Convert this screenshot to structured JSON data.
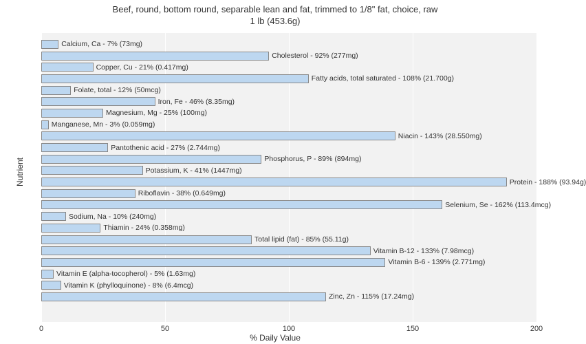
{
  "chart": {
    "type": "bar-horizontal",
    "title_line1": "Beef, round, bottom round, separable lean and fat, trimmed to 1/8\" fat, choice, raw",
    "title_line2": "1 lb (453.6g)",
    "title_fontsize": 13,
    "y_axis_label": "Nutrient",
    "x_axis_label": "% Daily Value",
    "axis_label_fontsize": 12,
    "tick_fontsize": 11,
    "bar_label_fontsize": 10.5,
    "xlim": [
      0,
      200
    ],
    "xtick_step": 50,
    "xticks": [
      0,
      50,
      100,
      150,
      200
    ],
    "background_color": "#ffffff",
    "plot_background_color": "#f2f2f2",
    "grid_color": "#ffffff",
    "bar_fill_color": "#bdd7f0",
    "bar_border_color": "#888888",
    "text_color": "#333333",
    "nutrients": [
      {
        "label": "Calcium, Ca - 7% (73mg)",
        "pct": 7
      },
      {
        "label": "Cholesterol - 92% (277mg)",
        "pct": 92
      },
      {
        "label": "Copper, Cu - 21% (0.417mg)",
        "pct": 21
      },
      {
        "label": "Fatty acids, total saturated - 108% (21.700g)",
        "pct": 108
      },
      {
        "label": "Folate, total - 12% (50mcg)",
        "pct": 12
      },
      {
        "label": "Iron, Fe - 46% (8.35mg)",
        "pct": 46
      },
      {
        "label": "Magnesium, Mg - 25% (100mg)",
        "pct": 25
      },
      {
        "label": "Manganese, Mn - 3% (0.059mg)",
        "pct": 3
      },
      {
        "label": "Niacin - 143% (28.550mg)",
        "pct": 143
      },
      {
        "label": "Pantothenic acid - 27% (2.744mg)",
        "pct": 27
      },
      {
        "label": "Phosphorus, P - 89% (894mg)",
        "pct": 89
      },
      {
        "label": "Potassium, K - 41% (1447mg)",
        "pct": 41
      },
      {
        "label": "Protein - 188% (93.94g)",
        "pct": 188
      },
      {
        "label": "Riboflavin - 38% (0.649mg)",
        "pct": 38
      },
      {
        "label": "Selenium, Se - 162% (113.4mcg)",
        "pct": 162
      },
      {
        "label": "Sodium, Na - 10% (240mg)",
        "pct": 10
      },
      {
        "label": "Thiamin - 24% (0.358mg)",
        "pct": 24
      },
      {
        "label": "Total lipid (fat) - 85% (55.11g)",
        "pct": 85
      },
      {
        "label": "Vitamin B-12 - 133% (7.98mcg)",
        "pct": 133
      },
      {
        "label": "Vitamin B-6 - 139% (2.771mg)",
        "pct": 139
      },
      {
        "label": "Vitamin E (alpha-tocopherol) - 5% (1.63mg)",
        "pct": 5
      },
      {
        "label": "Vitamin K (phylloquinone) - 8% (6.4mcg)",
        "pct": 8
      },
      {
        "label": "Zinc, Zn - 115% (17.24mg)",
        "pct": 115
      }
    ]
  }
}
